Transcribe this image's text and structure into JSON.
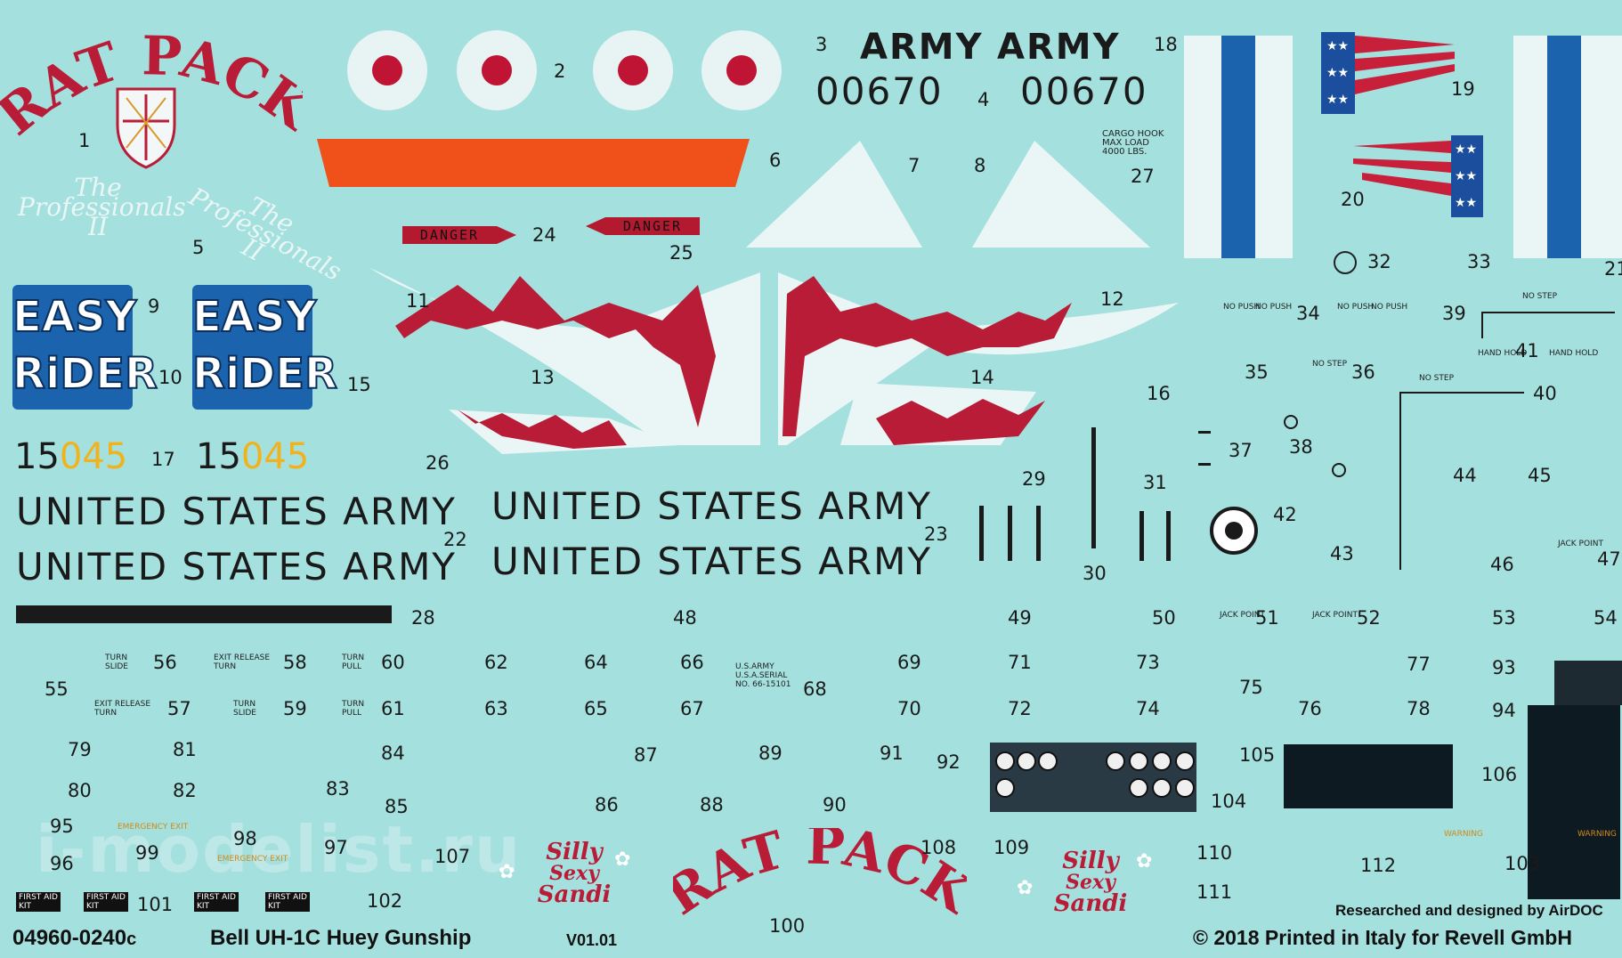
{
  "rat_pack": "RAT PACK",
  "professionals_1": "The\nProfessionals\nII",
  "professionals_2": "The\nProfessionals\nII",
  "easy": "EASY",
  "rider": "RiDER",
  "serial_15": "15",
  "serial_045": "045",
  "usarmy": "UNITED STATES ARMY",
  "army": "ARMY",
  "army_serial": "00670",
  "danger": "DANGER",
  "cargo_hook": "CARGO HOOK\nMAX LOAD\n4000 LBS.",
  "silly": "Silly",
  "sexy": "Sexy",
  "sandi": "Sandi",
  "researched": "Researched and designed by AirDOC",
  "copyright": "© 2018 Printed in Italy for Revell GmbH",
  "code_main": "04960-0240",
  "code_suffix": "c",
  "kit_title": "Bell UH-1C Huey Gunship",
  "version": "V01.01",
  "watermark": "i-modelist.ru",
  "labels": {
    "exit_release_turn": "EXIT RELEASE\nTURN",
    "turn_slide": "TURN\nSLIDE",
    "turn_pull": "TURN\nPULL",
    "emergency_exit": "EMERGENCY EXIT",
    "no_step": "NO STEP",
    "step": "STEP",
    "jack_point": "JACK POINT",
    "no_push": "NO PUSH",
    "hand_hold": "HAND HOLD",
    "warning": "WARNING",
    "first_aid": "FIRST AID\nKIT",
    "us_army": "U.S.ARMY\nU.S.A.SERIAL\nNO. 66-15101"
  },
  "numbers": {
    "n1": "1",
    "n2": "2",
    "n3": "3",
    "n4": "4",
    "n5": "5",
    "n6": "6",
    "n7": "7",
    "n8": "8",
    "n9": "9",
    "n10": "10",
    "n11": "11",
    "n12": "12",
    "n13": "13",
    "n14": "14",
    "n15": "15",
    "n16": "16",
    "n17": "17",
    "n18": "18",
    "n19": "19",
    "n20": "20",
    "n21": "21",
    "n22": "22",
    "n23": "23",
    "n24": "24",
    "n25": "25",
    "n26": "26",
    "n27": "27",
    "n28": "28",
    "n29": "29",
    "n30": "30",
    "n31": "31",
    "n32": "32",
    "n33": "33",
    "n34": "34",
    "n35": "35",
    "n36": "36",
    "n37": "37",
    "n38": "38",
    "n39": "39",
    "n40": "40",
    "n41": "41",
    "n42": "42",
    "n43": "43",
    "n44": "44",
    "n45": "45",
    "n46": "46",
    "n47": "47",
    "n48": "48",
    "n49": "49",
    "n50": "50",
    "n51": "51",
    "n52": "52",
    "n53": "53",
    "n54": "54",
    "n55": "55",
    "n56": "56",
    "n57": "57",
    "n58": "58",
    "n59": "59",
    "n60": "60",
    "n61": "61",
    "n62": "62",
    "n63": "63",
    "n64": "64",
    "n65": "65",
    "n66": "66",
    "n67": "67",
    "n68": "68",
    "n69": "69",
    "n70": "70",
    "n71": "71",
    "n72": "72",
    "n73": "73",
    "n74": "74",
    "n75": "75",
    "n76": "76",
    "n77": "77",
    "n78": "78",
    "n79": "79",
    "n80": "80",
    "n81": "81",
    "n82": "82",
    "n83": "83",
    "n84": "84",
    "n85": "85",
    "n86": "86",
    "n87": "87",
    "n88": "88",
    "n89": "89",
    "n90": "90",
    "n91": "91",
    "n92": "92",
    "n93": "93",
    "n94": "94",
    "n95": "95",
    "n96": "96",
    "n97": "97",
    "n98": "98",
    "n99": "99",
    "n100": "100",
    "n101": "101",
    "n102": "102",
    "n103": "103",
    "n104": "104",
    "n105": "105",
    "n106": "106",
    "n107": "107",
    "n108": "108",
    "n109": "109",
    "n110": "110",
    "n111": "111",
    "n112": "112"
  },
  "colors": {
    "sheet": "#a4e0de",
    "red": "#b81c36",
    "blue": "#1b63ad",
    "orange": "#f0501a",
    "yellow": "#f2b21c"
  }
}
